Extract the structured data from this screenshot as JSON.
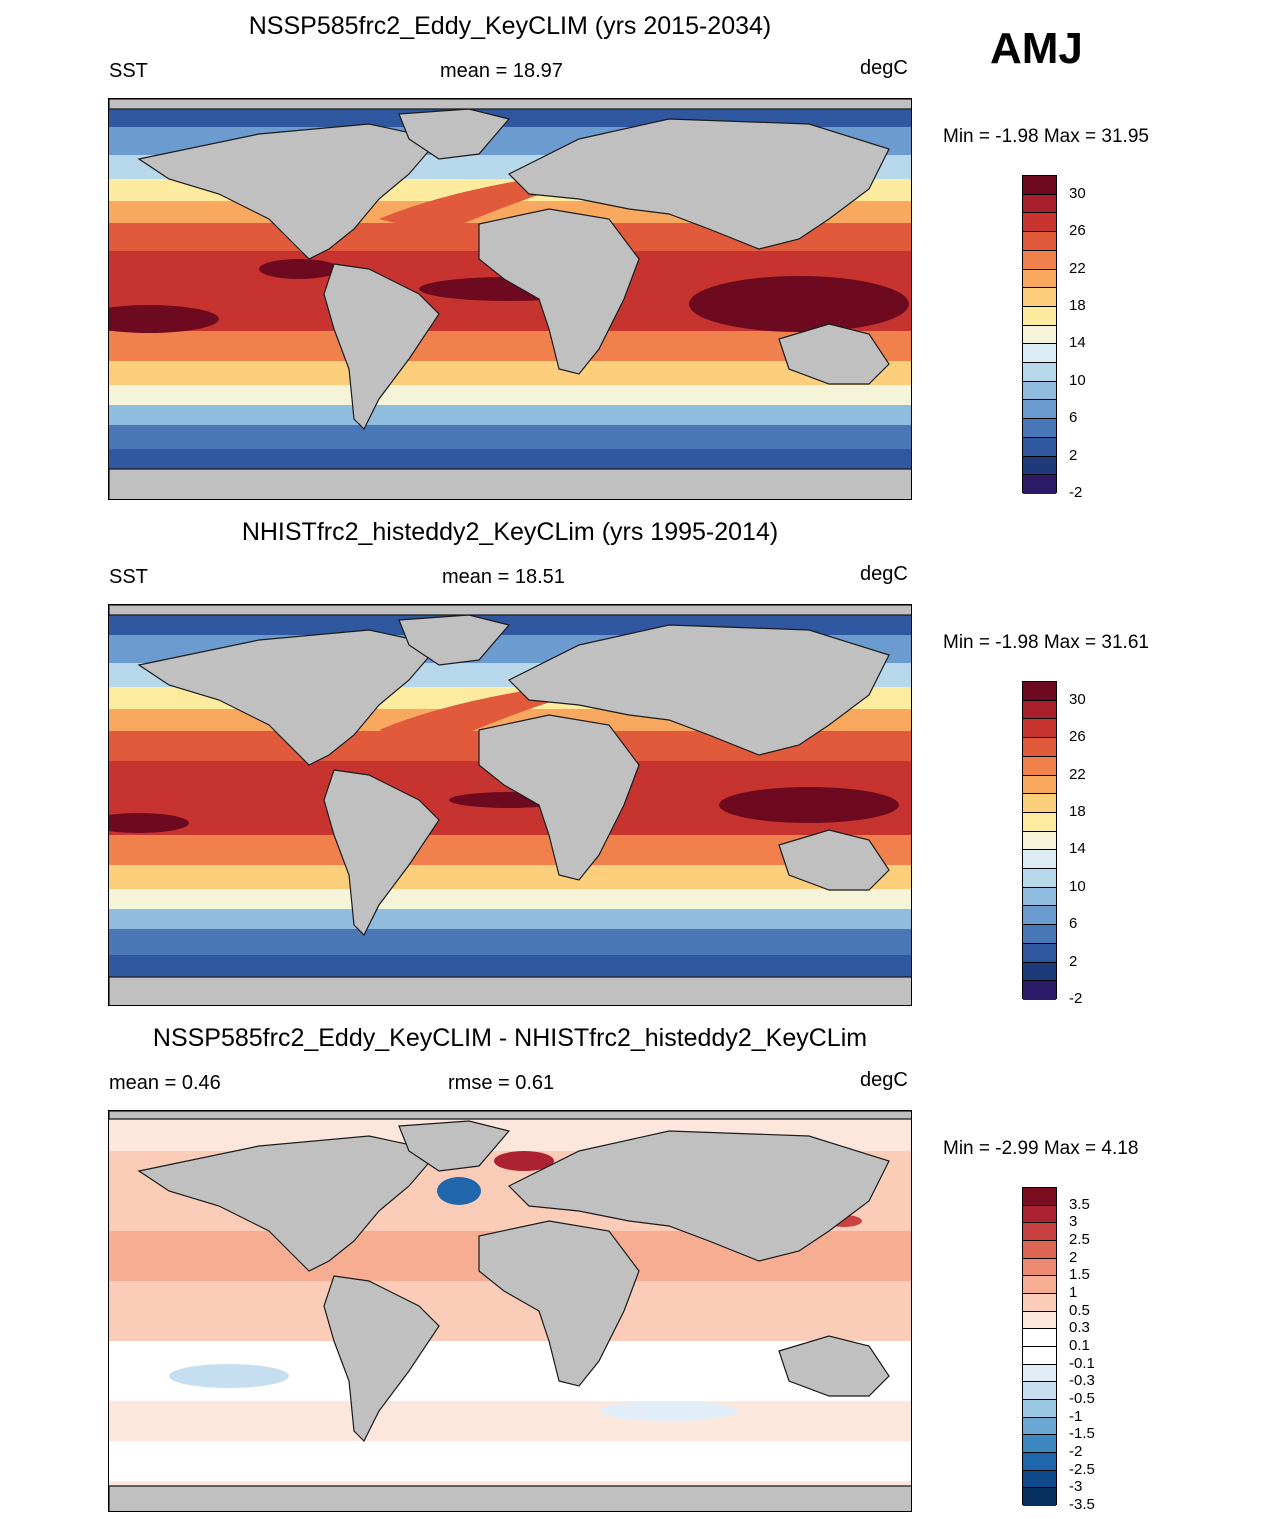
{
  "season": "AMJ",
  "units": "degC",
  "colors": {
    "land": "#c0c0c0",
    "coast": "#1a1a1a",
    "sst_scale": [
      "#2b1b66",
      "#1f3a7a",
      "#2f58a0",
      "#4a77b8",
      "#6b9bcf",
      "#8fbcdf",
      "#b7d8ea",
      "#dcecf2",
      "#f6f4d8",
      "#fdeba0",
      "#fdcf7c",
      "#f8a95f",
      "#f0804c",
      "#e05a3b",
      "#c7342f",
      "#a61f2a",
      "#6e0a1f"
    ],
    "diff_scale": [
      "#08305e",
      "#114a8c",
      "#1f66ad",
      "#3d87c2",
      "#6aa8d3",
      "#9cc8e3",
      "#c6dff0",
      "#e2eef7",
      "#ffffff",
      "#fde6dc",
      "#fbcdb9",
      "#f6ad92",
      "#ec8a72",
      "#dd6554",
      "#c94141",
      "#ac2232",
      "#7a0d20"
    ]
  },
  "panels": [
    {
      "title": "NSSP585frc2_Eddy_KeyCLIM (yrs 2015-2034)",
      "left_label": "SST",
      "center_label": "mean =  18.97",
      "right_label": "degC",
      "min_max": "Min =  -1.98 Max =  31.95"
    },
    {
      "title": "NHISTfrc2_histeddy2_KeyCLim (yrs 1995-2014)",
      "left_label": "SST",
      "center_label": "mean =  18.51",
      "right_label": "degC",
      "min_max": "Min =  -1.98 Max =  31.61"
    },
    {
      "title": "NSSP585frc2_Eddy_KeyCLIM - NHISTfrc2_histeddy2_KeyCLim",
      "left_label": "mean =   0.46",
      "center_label": "rmse =   0.61",
      "right_label": "degC",
      "min_max": "Min =  -2.99 Max =   4.18"
    }
  ],
  "chart_data": [
    {
      "type": "heatmap",
      "variable": "SST",
      "title": "NSSP585frc2_Eddy_KeyCLIM (yrs 2015-2034)",
      "mean": 18.97,
      "min": -1.98,
      "max": 31.95,
      "units": "degC",
      "contour_levels": [
        -2,
        0,
        2,
        4,
        6,
        8,
        10,
        12,
        14,
        16,
        18,
        20,
        22,
        24,
        26,
        28,
        30
      ],
      "colorbar_labels": [
        "30",
        "26",
        "22",
        "18",
        "14",
        "10",
        "6",
        "2",
        "-2"
      ]
    },
    {
      "type": "heatmap",
      "variable": "SST",
      "title": "NHISTfrc2_histeddy2_KeyCLim (yrs 1995-2014)",
      "mean": 18.51,
      "min": -1.98,
      "max": 31.61,
      "units": "degC",
      "contour_levels": [
        -2,
        0,
        2,
        4,
        6,
        8,
        10,
        12,
        14,
        16,
        18,
        20,
        22,
        24,
        26,
        28,
        30
      ],
      "colorbar_labels": [
        "30",
        "26",
        "22",
        "18",
        "14",
        "10",
        "6",
        "2",
        "-2"
      ]
    },
    {
      "type": "heatmap",
      "variable": "SST difference",
      "title": "NSSP585frc2_Eddy_KeyCLIM - NHISTfrc2_histeddy2_KeyCLim",
      "mean": 0.46,
      "rmse": 0.61,
      "min": -2.99,
      "max": 4.18,
      "units": "degC",
      "contour_levels": [
        -3.5,
        -3,
        -2.5,
        -2,
        -1.5,
        -1,
        -0.5,
        -0.3,
        -0.1,
        0.1,
        0.3,
        0.5,
        1,
        1.5,
        2,
        2.5,
        3,
        3.5
      ],
      "colorbar_labels": [
        "3.5",
        "3",
        "2.5",
        "2",
        "1.5",
        "1",
        "0.5",
        "0.3",
        "0.1",
        "-0.1",
        "-0.3",
        "-0.5",
        "-1",
        "-1.5",
        "-2",
        "-2.5",
        "-3",
        "-3.5"
      ]
    }
  ]
}
